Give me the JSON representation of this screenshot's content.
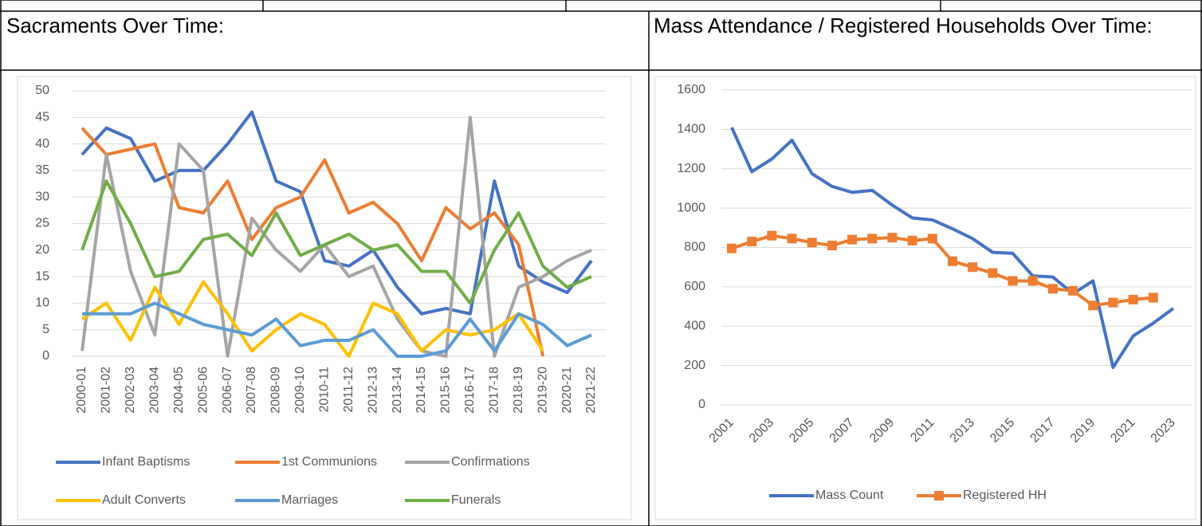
{
  "chart_data": [
    {
      "type": "line",
      "title": "Sacraments Over Time:",
      "categories": [
        "2000-01",
        "2001-02",
        "2002-03",
        "2003-04",
        "2004-05",
        "2005-06",
        "2006-07",
        "2007-08",
        "2008-09",
        "2009-10",
        "2010-11",
        "2011-12",
        "2012-13",
        "2013-14",
        "2014-15",
        "2015-16",
        "2016-17",
        "2017-18",
        "2018-19",
        "2019-20",
        "2020-21",
        "2021-22"
      ],
      "series": [
        {
          "name": "Infant Baptisms",
          "color": "#4472c4",
          "values": [
            38,
            43,
            41,
            33,
            35,
            35,
            40,
            46,
            33,
            31,
            18,
            17,
            20,
            13,
            8,
            9,
            8,
            33,
            17,
            14,
            12,
            18
          ]
        },
        {
          "name": "1st Communions",
          "color": "#ed7d31",
          "values": [
            43,
            38,
            39,
            40,
            28,
            27,
            33,
            22,
            28,
            30,
            37,
            27,
            29,
            25,
            18,
            28,
            24,
            27,
            21,
            0,
            null,
            null
          ]
        },
        {
          "name": "Confirmations",
          "color": "#a5a5a5",
          "values": [
            1,
            38,
            16,
            4,
            40,
            35,
            0,
            26,
            20,
            16,
            21,
            15,
            17,
            7,
            1,
            0,
            45,
            0,
            13,
            15,
            18,
            20
          ]
        },
        {
          "name": "Adult Converts",
          "color": "#ffc000",
          "values": [
            7,
            10,
            3,
            13,
            6,
            14,
            8,
            1,
            5,
            8,
            6,
            0,
            10,
            8,
            1,
            5,
            4,
            5,
            8,
            1,
            null,
            null
          ]
        },
        {
          "name": "Marriages",
          "color": "#5b9bd5",
          "values": [
            8,
            8,
            8,
            10,
            8,
            6,
            5,
            4,
            7,
            2,
            3,
            3,
            5,
            0,
            0,
            1,
            7,
            1,
            8,
            6,
            2,
            4
          ]
        },
        {
          "name": "Funerals",
          "color": "#70ad47",
          "values": [
            20,
            33,
            25,
            15,
            16,
            22,
            23,
            19,
            27,
            19,
            21,
            23,
            20,
            21,
            16,
            16,
            10,
            20,
            27,
            17,
            13,
            15
          ]
        }
      ],
      "ylim": [
        0,
        50
      ],
      "yticks": [
        0,
        5,
        10,
        15,
        20,
        25,
        30,
        35,
        40,
        45,
        50
      ],
      "grid": true,
      "legend": "bottom"
    },
    {
      "type": "line",
      "title": "Mass Attendance / Registered Households Over Time:",
      "categories": [
        "2001",
        null,
        "2003",
        null,
        "2005",
        null,
        "2007",
        null,
        "2009",
        null,
        "2011",
        null,
        "2013",
        null,
        "2015",
        null,
        "2017",
        null,
        "2019",
        null,
        "2021",
        null,
        "2023"
      ],
      "series": [
        {
          "name": "Mass Count",
          "color": "#4472c4",
          "values": [
            1410,
            1185,
            1250,
            1345,
            1175,
            1110,
            1080,
            1090,
            1015,
            950,
            940,
            895,
            845,
            775,
            770,
            655,
            650,
            565,
            630,
            190,
            350,
            415,
            490
          ]
        },
        {
          "name": "Registered HH",
          "color": "#ed7d31",
          "marker": "square",
          "values": [
            795,
            830,
            860,
            845,
            825,
            810,
            840,
            845,
            850,
            835,
            845,
            730,
            700,
            670,
            630,
            630,
            590,
            580,
            505,
            520,
            535,
            545,
            null
          ]
        }
      ],
      "ylim": [
        0,
        1600
      ],
      "yticks": [
        0,
        200,
        400,
        600,
        800,
        1000,
        1200,
        1400,
        1600
      ],
      "grid": true,
      "legend": "bottom"
    }
  ]
}
